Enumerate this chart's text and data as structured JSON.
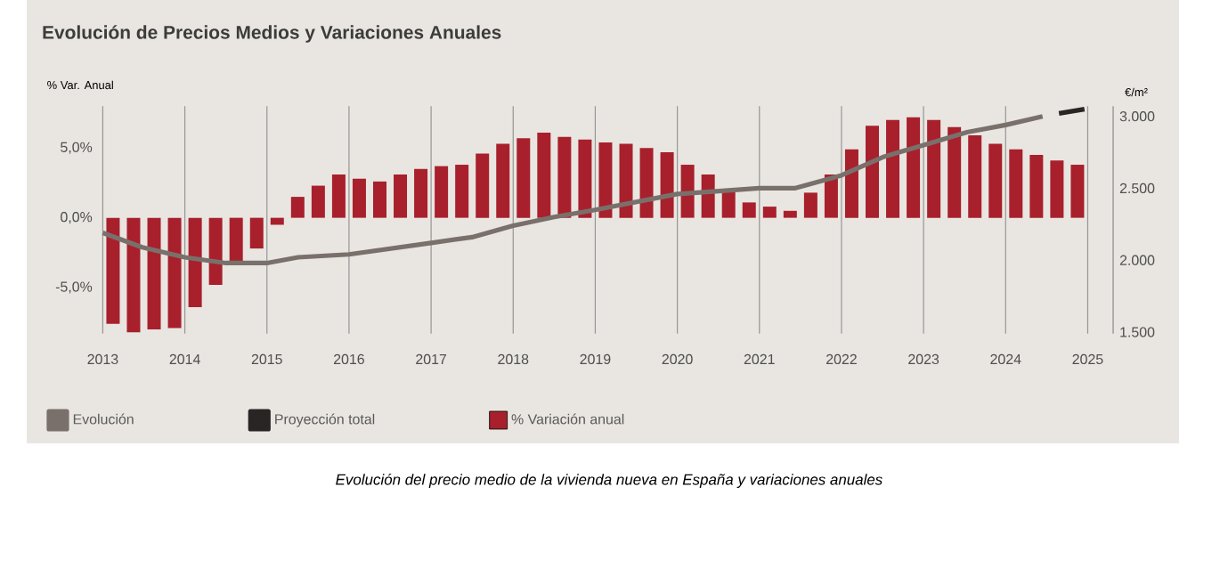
{
  "chart_data": {
    "type": "bar",
    "title": "Evolución de Precios Medios y Variaciones Anuales",
    "ylabel": "% Var. Anual",
    "y2label": "€/m²",
    "annotations": [
      "Evolución del precio medio de la vivienda nueva en España y variaciones anuales"
    ],
    "xlim": [
      2012.95,
      2025.31
    ],
    "xticks": [
      2013,
      2014,
      2015,
      2016,
      2017,
      2018,
      2019,
      2020,
      2021,
      2022,
      2023,
      2024,
      2025
    ],
    "ylim": [
      -8.3,
      8.0
    ],
    "yticks": [
      {
        "value": -5,
        "label": "-5,0%"
      },
      {
        "value": 0,
        "label": "0,0%"
      },
      {
        "value": 5,
        "label": "5,0%"
      }
    ],
    "y2lim": [
      1489,
      3071
    ],
    "y2ticks": [
      {
        "value": 1500,
        "label": "1.500"
      },
      {
        "value": 2000,
        "label": "2.000"
      },
      {
        "value": 2500,
        "label": "2.500"
      },
      {
        "value": 3000,
        "label": "3.000"
      }
    ],
    "grid": "x",
    "legend": "bottom",
    "series": [
      {
        "name": "Evolución",
        "type": "line",
        "axis": "y2",
        "color": "#7a706b",
        "x": [
          2013.0,
          2013.48,
          2014.0,
          2014.5,
          2015.0,
          2015.38,
          2016.0,
          2017.0,
          2017.5,
          2018.0,
          2018.5,
          2019.0,
          2020.0,
          2021.0,
          2021.43,
          2022.0,
          2022.52,
          2023.0,
          2023.53,
          2024.0,
          2024.45
        ],
        "values": [
          2190,
          2090,
          2020,
          1980,
          1980,
          2020,
          2040,
          2120,
          2160,
          2240,
          2300,
          2350,
          2460,
          2500,
          2500,
          2590,
          2720,
          2800,
          2890,
          2940,
          3000
        ]
      },
      {
        "name": "Proyección total",
        "type": "line",
        "axis": "y2",
        "color": "#2a2525",
        "x": [
          2024.65,
          2024.96
        ],
        "values": [
          3020,
          3050
        ]
      },
      {
        "name": "% Variación anual",
        "color": "#a8202c",
        "x": [
          2013.125,
          2013.375,
          2013.625,
          2013.875,
          2014.125,
          2014.375,
          2014.625,
          2014.875,
          2015.125,
          2015.375,
          2015.625,
          2015.875,
          2016.125,
          2016.375,
          2016.625,
          2016.875,
          2017.125,
          2017.375,
          2017.625,
          2017.875,
          2018.125,
          2018.375,
          2018.625,
          2018.875,
          2019.125,
          2019.375,
          2019.625,
          2019.875,
          2020.125,
          2020.375,
          2020.625,
          2020.875,
          2021.125,
          2021.375,
          2021.625,
          2021.875,
          2022.125,
          2022.375,
          2022.625,
          2022.875,
          2023.125,
          2023.375,
          2023.625,
          2023.875,
          2024.125,
          2024.375,
          2024.625,
          2024.875
        ],
        "values": [
          -7.6,
          -8.2,
          -8.0,
          -7.9,
          -6.4,
          -4.8,
          -3.1,
          -2.2,
          -0.5,
          1.5,
          2.3,
          3.1,
          2.8,
          2.6,
          3.1,
          3.5,
          3.7,
          3.8,
          4.6,
          5.3,
          5.7,
          6.1,
          5.8,
          5.6,
          5.4,
          5.3,
          5.0,
          4.7,
          3.8,
          3.1,
          1.9,
          1.1,
          0.8,
          0.5,
          1.8,
          3.1,
          4.9,
          6.6,
          7.0,
          7.2,
          7.0,
          6.5,
          5.9,
          5.3,
          4.9,
          4.5,
          4.1,
          3.8
        ]
      }
    ]
  }
}
